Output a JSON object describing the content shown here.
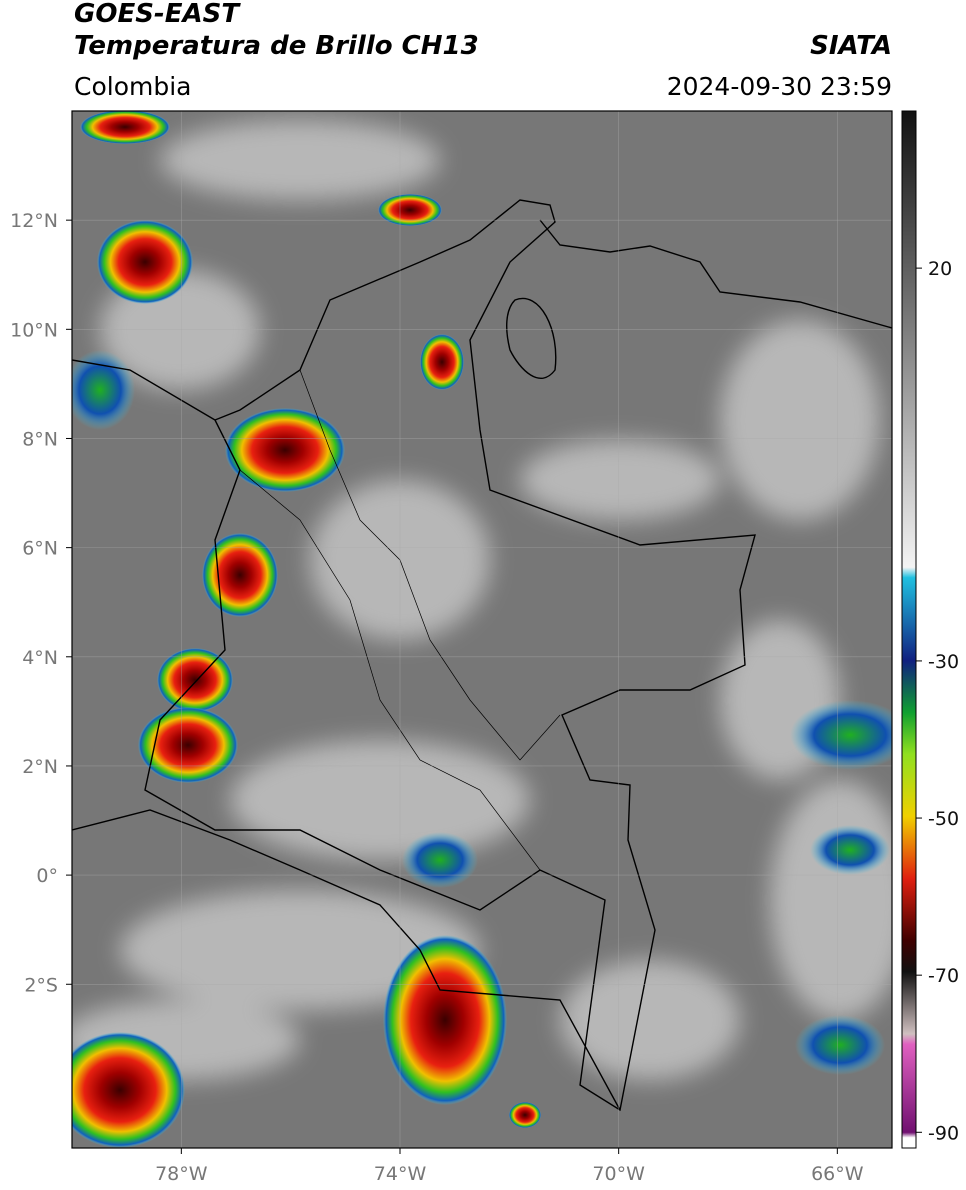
{
  "header": {
    "title": "GOES-EAST",
    "subtitle": "Temperatura de Brillo CH13",
    "source": "SIATA",
    "region": "Colombia",
    "datetime": "2024-09-30 23:59"
  },
  "map": {
    "lon_range": [
      -80,
      -65
    ],
    "lat_range": [
      -5,
      14
    ],
    "lon_ticks": [
      {
        "value": -78,
        "label": "78°W"
      },
      {
        "value": -74,
        "label": "74°W"
      },
      {
        "value": -70,
        "label": "70°W"
      },
      {
        "value": -66,
        "label": "66°W"
      }
    ],
    "lat_ticks": [
      {
        "value": 12,
        "label": "12°N"
      },
      {
        "value": 10,
        "label": "10°N"
      },
      {
        "value": 8,
        "label": "8°N"
      },
      {
        "value": 6,
        "label": "6°N"
      },
      {
        "value": 4,
        "label": "4°N"
      },
      {
        "value": 2,
        "label": "2°N"
      },
      {
        "value": 0,
        "label": "0°"
      },
      {
        "value": -2,
        "label": "2°S"
      }
    ]
  },
  "colorbar": {
    "range": [
      -92,
      40
    ],
    "ticks": [
      20,
      -30,
      -50,
      -70,
      -90
    ]
  }
}
